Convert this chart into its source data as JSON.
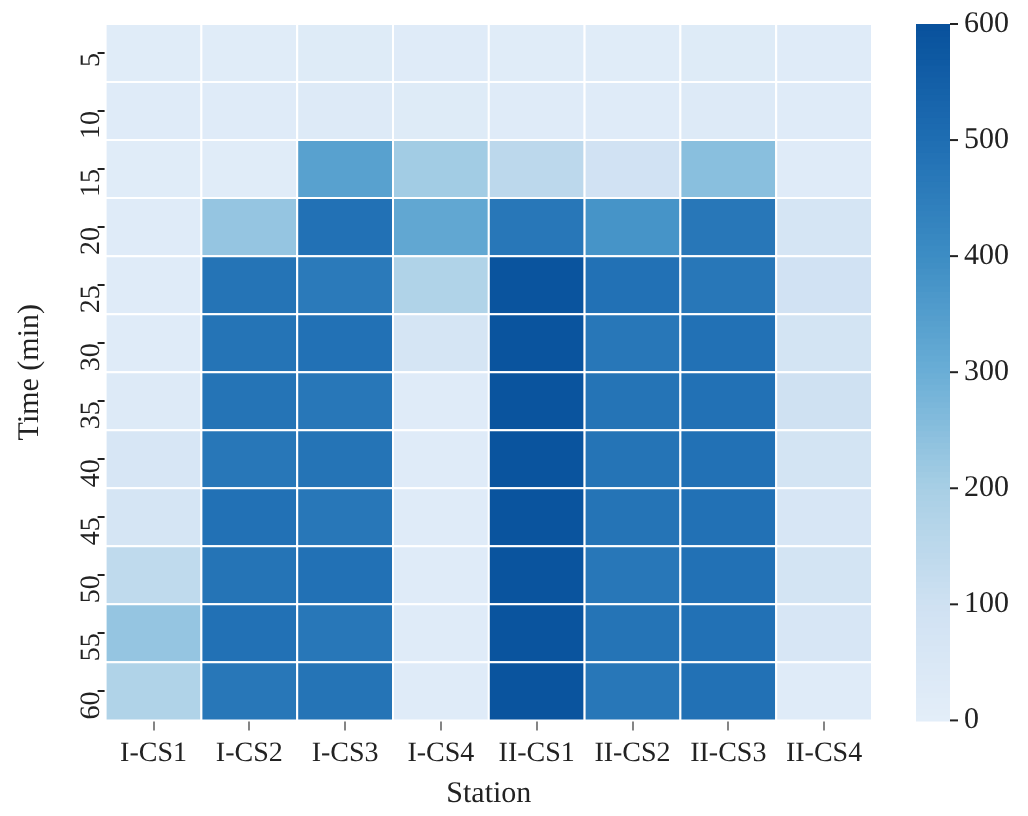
{
  "chart_data": {
    "type": "heatmap",
    "xlabel": "Station",
    "ylabel": "Time (min)",
    "categories": [
      "I-CS1",
      "I-CS2",
      "I-CS3",
      "I-CS4",
      "II-CS1",
      "II-CS2",
      "II-CS3",
      "II-CS4"
    ],
    "y_categories": [
      "5",
      "10",
      "15",
      "20",
      "25",
      "30",
      "35",
      "40",
      "45",
      "50",
      "55",
      "60"
    ],
    "cells": [
      [
        15,
        15,
        25,
        20,
        15,
        15,
        25,
        20
      ],
      [
        20,
        20,
        30,
        25,
        20,
        20,
        30,
        20
      ],
      [
        15,
        15,
        340,
        210,
        150,
        90,
        250,
        20
      ],
      [
        20,
        230,
        490,
        320,
        470,
        380,
        470,
        70
      ],
      [
        20,
        480,
        460,
        180,
        590,
        490,
        470,
        90
      ],
      [
        20,
        480,
        490,
        70,
        590,
        470,
        490,
        80
      ],
      [
        30,
        480,
        470,
        20,
        590,
        480,
        490,
        100
      ],
      [
        60,
        470,
        480,
        20,
        590,
        480,
        490,
        80
      ],
      [
        70,
        490,
        470,
        20,
        590,
        480,
        490,
        60
      ],
      [
        140,
        480,
        490,
        20,
        590,
        470,
        490,
        80
      ],
      [
        230,
        490,
        470,
        20,
        590,
        480,
        490,
        60
      ],
      [
        180,
        470,
        480,
        20,
        590,
        470,
        490,
        20
      ]
    ],
    "clim": [
      0,
      600
    ],
    "cticks": [
      0,
      100,
      200,
      300,
      400,
      500,
      600
    ]
  }
}
